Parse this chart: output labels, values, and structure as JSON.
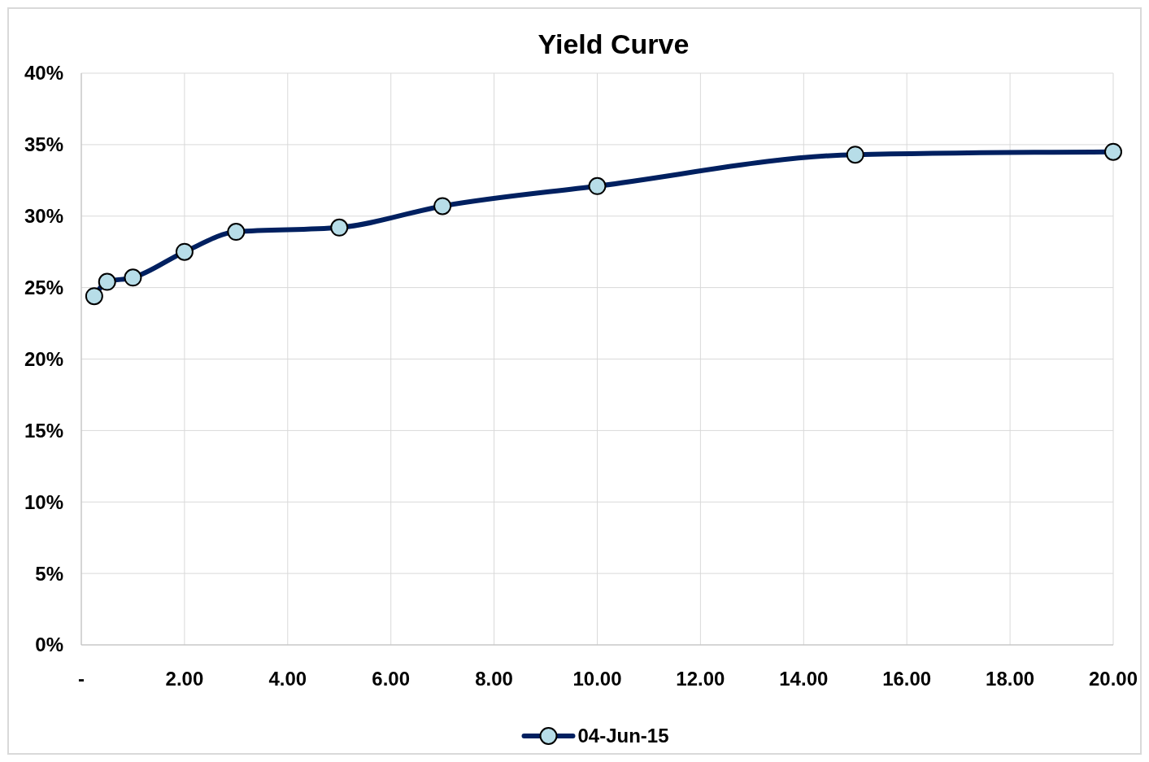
{
  "chart_data": {
    "type": "line",
    "title": "Yield Curve",
    "series": [
      {
        "name": "04-Jun-15",
        "color": "#002060",
        "x": [
          0.25,
          0.5,
          1,
          2,
          3,
          5,
          7,
          10,
          15,
          20
        ],
        "values": [
          24.4,
          25.4,
          25.7,
          27.5,
          28.9,
          29.2,
          30.7,
          32.1,
          34.3,
          34.5
        ]
      }
    ],
    "xlim": [
      0,
      20
    ],
    "xticks": [
      {
        "value": 0,
        "label": "-"
      },
      {
        "value": 2,
        "label": "2.00"
      },
      {
        "value": 4,
        "label": "4.00"
      },
      {
        "value": 6,
        "label": "6.00"
      },
      {
        "value": 8,
        "label": "8.00"
      },
      {
        "value": 10,
        "label": "10.00"
      },
      {
        "value": 12,
        "label": "12.00"
      },
      {
        "value": 14,
        "label": "14.00"
      },
      {
        "value": 16,
        "label": "16.00"
      },
      {
        "value": 18,
        "label": "18.00"
      },
      {
        "value": 20,
        "label": "20.00"
      }
    ],
    "ylim": [
      0,
      40
    ],
    "yticks": [
      {
        "value": 0,
        "label": "0%"
      },
      {
        "value": 5,
        "label": "5%"
      },
      {
        "value": 10,
        "label": "10%"
      },
      {
        "value": 15,
        "label": "15%"
      },
      {
        "value": 20,
        "label": "20%"
      },
      {
        "value": 25,
        "label": "25%"
      },
      {
        "value": 30,
        "label": "30%"
      },
      {
        "value": 35,
        "label": "35%"
      },
      {
        "value": 40,
        "label": "40%"
      }
    ],
    "grid": true,
    "legend": "bottom",
    "marker": "circle",
    "line_style": "solid"
  }
}
